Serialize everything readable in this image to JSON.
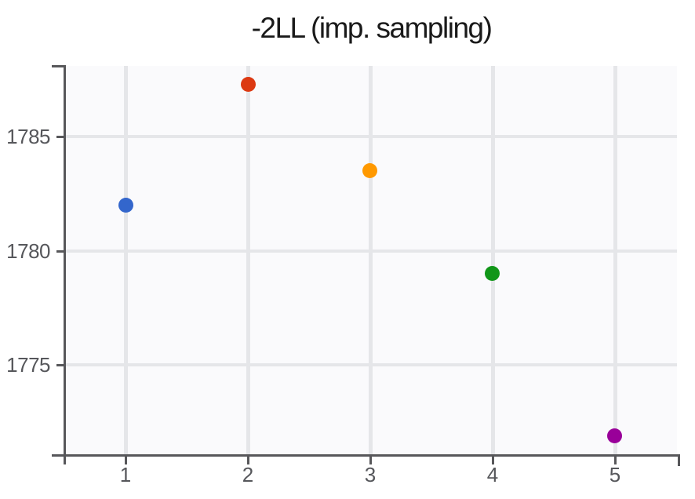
{
  "figure": {
    "title": "-2LL (imp. sampling)"
  },
  "chart_data": {
    "type": "scatter",
    "title": "-2LL (imp. sampling)",
    "xlabel": "",
    "ylabel": "",
    "x": [
      1,
      2,
      3,
      4,
      5
    ],
    "y": [
      1782.0,
      1787.3,
      1783.5,
      1779.0,
      1771.9
    ],
    "point_colors": [
      "#3366cc",
      "#dc3912",
      "#ff9900",
      "#109618",
      "#990099"
    ],
    "x_ticks": [
      1,
      2,
      3,
      4,
      5
    ],
    "x_tick_labels": [
      "1",
      "2",
      "3",
      "4",
      "5"
    ],
    "y_ticks": [
      1775,
      1780,
      1785
    ],
    "y_tick_labels": [
      "1775",
      "1780",
      "1785"
    ],
    "xlim": [
      0.51,
      5.51
    ],
    "ylim": [
      1771.1,
      1788.1
    ],
    "grid": true,
    "legend": false,
    "style": {
      "plot_bg": "#fafafc",
      "grid_color": "#e5e6e9",
      "axis_color": "#57575a",
      "tick_label_color": "#56575b",
      "title_color": "#1a1a1a"
    }
  }
}
